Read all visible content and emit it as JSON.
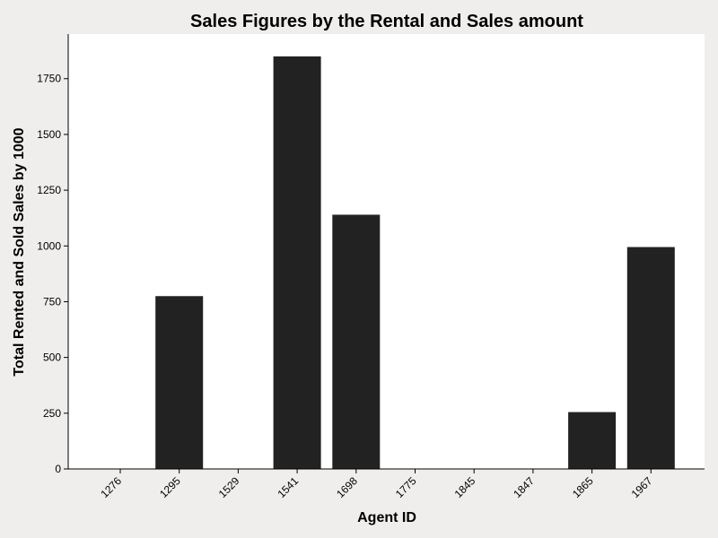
{
  "chart_data": {
    "type": "bar",
    "title": "Sales Figures by the Rental and Sales amount",
    "xlabel": "Agent ID",
    "ylabel": "Total Rented and Sold Sales by 1000",
    "categories": [
      "1276",
      "1295",
      "1529",
      "1541",
      "1698",
      "1775",
      "1845",
      "1847",
      "1865",
      "1967"
    ],
    "values": [
      0,
      775,
      0,
      1850,
      1140,
      0,
      0,
      0,
      255,
      995
    ],
    "ylim": [
      0,
      1950
    ],
    "yticks": [
      0,
      250,
      500,
      750,
      1000,
      1250,
      1500,
      1750
    ],
    "grid": false,
    "bar_color": "#222222",
    "plot_background": "#ffffff",
    "figure_background": "#efeeec"
  }
}
